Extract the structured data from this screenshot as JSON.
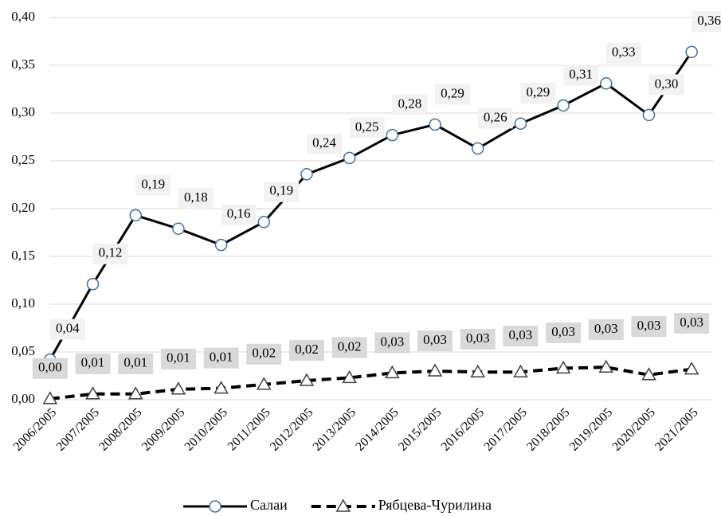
{
  "chart_data": {
    "type": "line",
    "categories": [
      "2006/2005",
      "2007/2005",
      "2008/2005",
      "2009/2005",
      "2010/2005",
      "2011/2005",
      "2012/2005",
      "2013/2005",
      "2014/2005",
      "2015/2005",
      "2016/2005",
      "2017/2005",
      "2018/2005",
      "2019/2005",
      "2020/2005",
      "2021/2005"
    ],
    "series": [
      {
        "name": "Салаи",
        "color": "#000000",
        "marker_color": "#41719c",
        "values": [
          0.042,
          0.121,
          0.193,
          0.179,
          0.162,
          0.186,
          0.236,
          0.253,
          0.277,
          0.288,
          0.263,
          0.289,
          0.308,
          0.331,
          0.298,
          0.364
        ],
        "value_labels": [
          "0,04",
          "0,12",
          "0,19",
          "0,18",
          "0,16",
          "0,19",
          "0,24",
          "0,25",
          "0,28",
          "0,29",
          "0,26",
          "0,29",
          "0,31",
          "0,33",
          "0,30",
          "0,36"
        ]
      },
      {
        "name": "Рябцева-Чурилина",
        "color": "#000000",
        "marker_color": "#404040",
        "values": [
          0.001,
          0.006,
          0.006,
          0.011,
          0.012,
          0.016,
          0.02,
          0.023,
          0.028,
          0.03,
          0.029,
          0.029,
          0.033,
          0.034,
          0.026,
          0.032
        ],
        "value_labels": [
          "0,00",
          "0,01",
          "0,01",
          "0,01",
          "0,01",
          "0,02",
          "0,02",
          "0,02",
          "0,03",
          "0,03",
          "0,03",
          "0,03",
          "0,03",
          "0,03",
          "0,03",
          "0,03"
        ]
      }
    ],
    "ylim": [
      0,
      0.4
    ],
    "yticks": [
      {
        "value": 0,
        "label": "0,00"
      },
      {
        "value": 0.05,
        "label": "0,05"
      },
      {
        "value": 0.1,
        "label": "0,10"
      },
      {
        "value": 0.15,
        "label": "0,15"
      },
      {
        "value": 0.2,
        "label": "0,20"
      },
      {
        "value": 0.25,
        "label": "0,25"
      },
      {
        "value": 0.3,
        "label": "0,30"
      },
      {
        "value": 0.35,
        "label": "0,35"
      },
      {
        "value": 0.4,
        "label": "0,40"
      }
    ],
    "grid": true,
    "legend": "bottom"
  }
}
